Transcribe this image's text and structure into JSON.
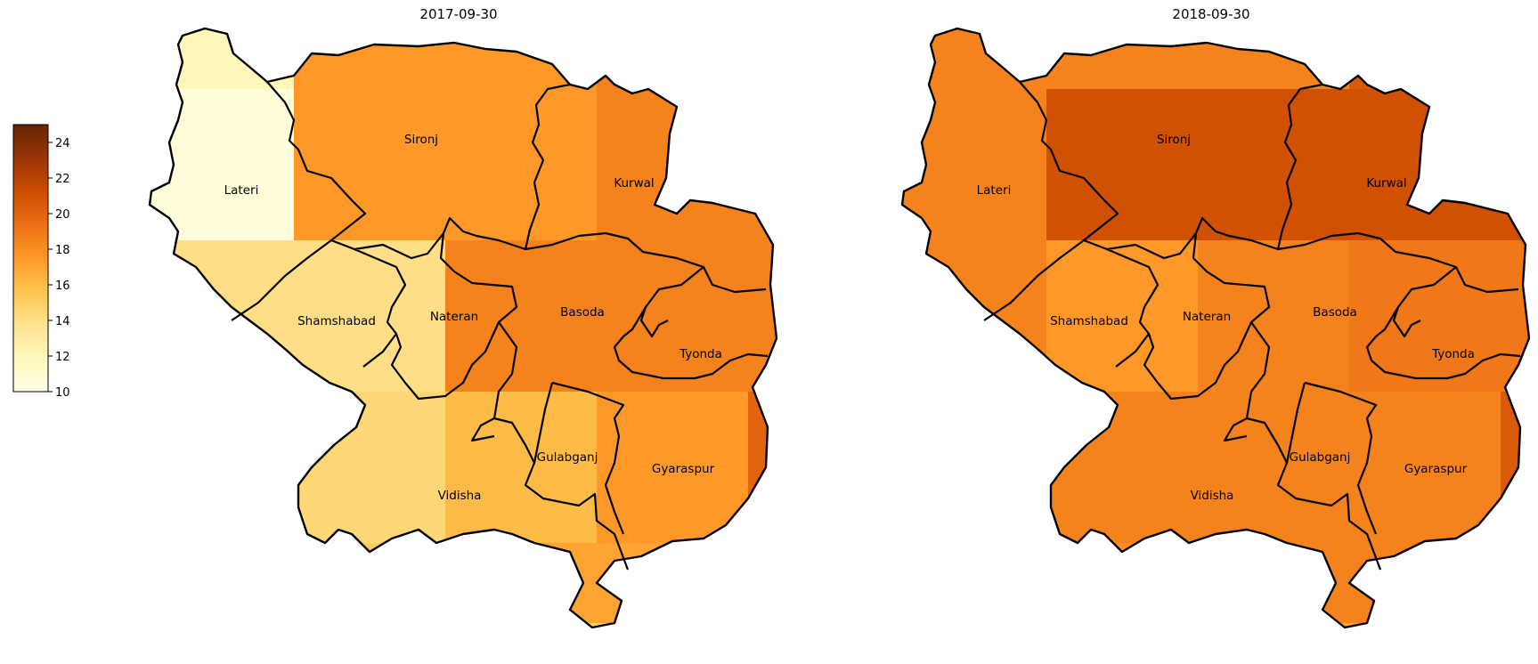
{
  "maps": [
    {
      "title": "2017-09-30",
      "cells": [
        [
          14.5,
          12.0,
          17.5,
          17.5,
          18.5,
          18.5,
          12.5,
          16.5
        ],
        [
          10.5,
          10.5,
          17.5,
          17.5,
          18.5,
          18.5,
          12.5,
          13.0
        ],
        [
          15.5,
          14.0,
          14.0,
          18.5,
          18.5,
          18.5,
          13.5,
          19.5
        ],
        [
          16.0,
          16.0,
          14.5,
          16.0,
          17.5,
          20.0,
          19.5,
          20.0
        ],
        [
          15.5,
          15.5,
          15.0,
          17.0,
          17.0,
          19.5,
          19.5,
          20.0
        ],
        [
          15.0,
          15.0,
          14.5,
          15.0,
          15.5,
          15.5,
          15.5,
          20.0
        ]
      ],
      "labels": [
        "Lateri",
        "Sironj",
        "Kurwal",
        "Shamshabad",
        "Nateran",
        "Basoda",
        "Tyonda",
        "Gulabganj",
        "Gyaraspur",
        "Vidisha"
      ]
    },
    {
      "title": "2018-09-30",
      "cells": [
        [
          20.5,
          18.5,
          18.5,
          18.5,
          20.5,
          20.0,
          19.0,
          18.0
        ],
        [
          18.5,
          18.5,
          21.0,
          21.0,
          21.0,
          21.0,
          18.0,
          18.0
        ],
        [
          18.5,
          18.5,
          17.5,
          18.5,
          19.0,
          19.0,
          16.0,
          19.5
        ],
        [
          18.5,
          18.5,
          18.5,
          18.5,
          18.5,
          20.5,
          20.5,
          20.5
        ],
        [
          18.0,
          18.0,
          18.0,
          18.5,
          18.5,
          20.0,
          20.5,
          20.5
        ],
        [
          11.5,
          18.0,
          18.0,
          17.0,
          17.0,
          17.0,
          17.0,
          20.5
        ]
      ],
      "labels": [
        "Sironj",
        "Lateri",
        "Kurwal",
        "Basoda",
        "Shamshabad",
        "Nateran",
        "Tyonda",
        "Gulabganj",
        "Gyaraspur",
        "Vidisha"
      ]
    }
  ],
  "colorbar": {
    "min": 10,
    "max": 25,
    "ticks": [
      "24",
      "22",
      "20",
      "18",
      "16",
      "14",
      "12",
      "10"
    ],
    "colormap": "YlOrBr",
    "stops": [
      "#ffffe5",
      "#fff7bc",
      "#fee391",
      "#fec44f",
      "#fe9929",
      "#ec7014",
      "#cc4c02",
      "#993404",
      "#662506"
    ]
  }
}
